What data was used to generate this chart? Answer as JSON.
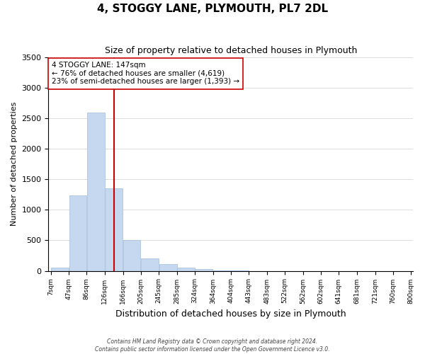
{
  "title": "4, STOGGY LANE, PLYMOUTH, PL7 2DL",
  "subtitle": "Size of property relative to detached houses in Plymouth",
  "xlabel": "Distribution of detached houses by size in Plymouth",
  "ylabel": "Number of detached properties",
  "bar_color": "#c5d8f0",
  "bar_edge_color": "#a0bcd8",
  "vline_x": 147,
  "vline_color": "#cc0000",
  "annotation_title": "4 STOGGY LANE: 147sqm",
  "annotation_line1": "← 76% of detached houses are smaller (4,619)",
  "annotation_line2": "23% of semi-detached houses are larger (1,393) →",
  "bin_edges": [
    7,
    47,
    86,
    126,
    166,
    205,
    245,
    285,
    324,
    364,
    404,
    443,
    483,
    522,
    562,
    602,
    641,
    681,
    721,
    760,
    800
  ],
  "bar_heights": [
    50,
    1230,
    2590,
    1350,
    500,
    200,
    110,
    50,
    30,
    10,
    5,
    0,
    0,
    0,
    0,
    0,
    0,
    0,
    0,
    0
  ],
  "ylim": [
    0,
    3500
  ],
  "yticks": [
    0,
    500,
    1000,
    1500,
    2000,
    2500,
    3000,
    3500
  ],
  "footer_line1": "Contains HM Land Registry data © Crown copyright and database right 2024.",
  "footer_line2": "Contains public sector information licensed under the Open Government Licence v3.0."
}
